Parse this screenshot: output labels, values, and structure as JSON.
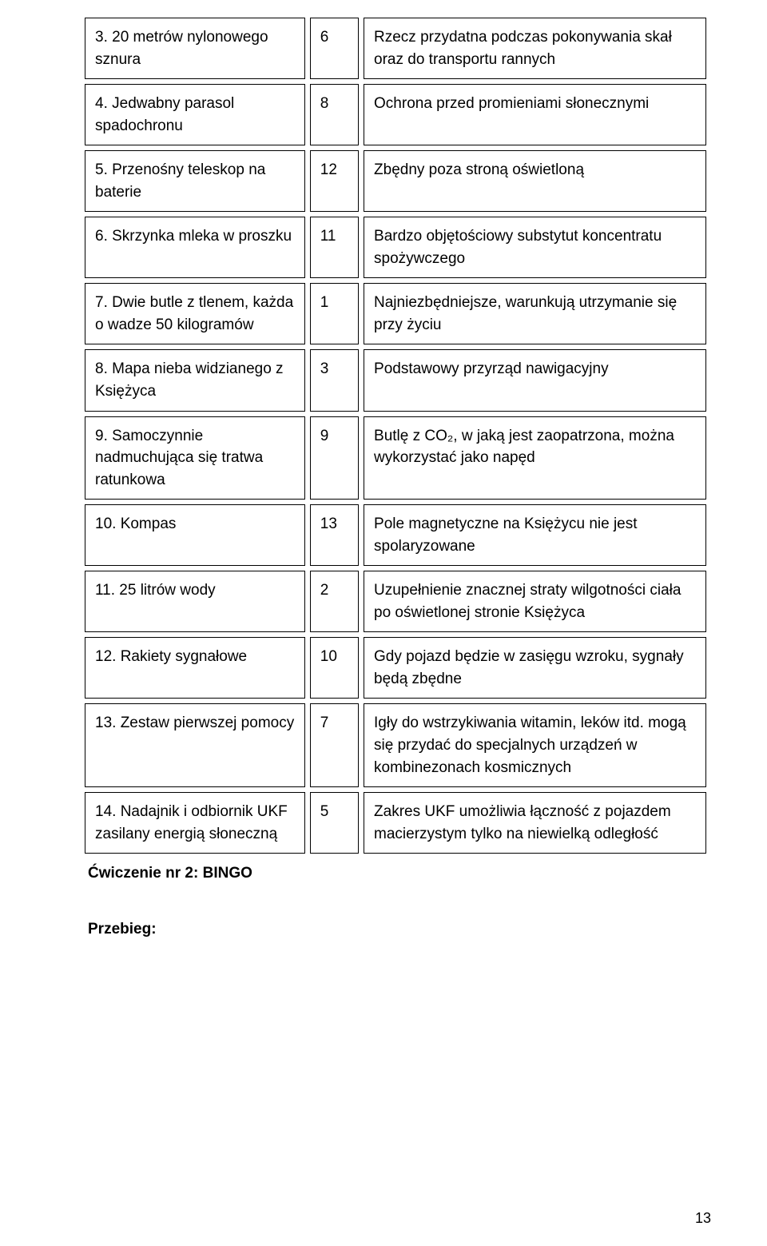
{
  "table": {
    "rows": [
      {
        "item": "3. 20 metrów nylonowego sznura",
        "rank": "6",
        "reason": "Rzecz przydatna podczas pokonywania skał oraz do transportu rannych"
      },
      {
        "item": "4. Jedwabny parasol spadochronu",
        "rank": "8",
        "reason": "Ochrona przed promieniami słonecznymi"
      },
      {
        "item": "5. Przenośny teleskop na baterie",
        "rank": "12",
        "reason": "Zbędny poza stroną oświetloną"
      },
      {
        "item": "6. Skrzynka mleka w proszku",
        "rank": "11",
        "reason": "Bardzo objętościowy substytut koncentratu spożywczego"
      },
      {
        "item": "7. Dwie butle z tlenem, każda o wadze 50 kilogramów",
        "rank": "1",
        "reason": "Najniezbędniejsze, warunkują utrzymanie się przy życiu"
      },
      {
        "item": "8. Mapa nieba widzianego z Księżyca",
        "rank": "3",
        "reason": "Podstawowy przyrząd nawigacyjny"
      },
      {
        "item": "9. Samoczynnie nadmuchująca się tratwa ratunkowa",
        "rank": "9",
        "reason": "Butlę z CO₂, w jaką jest zaopatrzona, można wykorzystać jako napęd"
      },
      {
        "item": "10. Kompas",
        "rank": "13",
        "reason": "Pole magnetyczne na Księżycu nie jest spolaryzowane"
      },
      {
        "item": "11. 25 litrów wody",
        "rank": "2",
        "reason": "Uzupełnienie znacznej straty wilgotności ciała po oświetlonej stronie Księżyca"
      },
      {
        "item": "12. Rakiety sygnałowe",
        "rank": "10",
        "reason": "Gdy pojazd będzie w zasięgu wzroku, sygnały będą zbędne"
      },
      {
        "item": "13. Zestaw pierwszej pomocy",
        "rank": "7",
        "reason": "Igły do wstrzykiwania witamin, leków itd. mogą się przydać do specjalnych urządzeń w kombinezonach kosmicznych"
      },
      {
        "item": "14. Nadajnik i odbiornik UKF zasilany energią słoneczną",
        "rank": "5",
        "reason": "Zakres UKF umożliwia łączność z pojazdem macierzystym tylko na niewielką odległość"
      }
    ]
  },
  "footer": {
    "exercise_label": "Ćwiczenie nr 2: BINGO",
    "run_label": "Przebieg:"
  },
  "page_number": "13"
}
